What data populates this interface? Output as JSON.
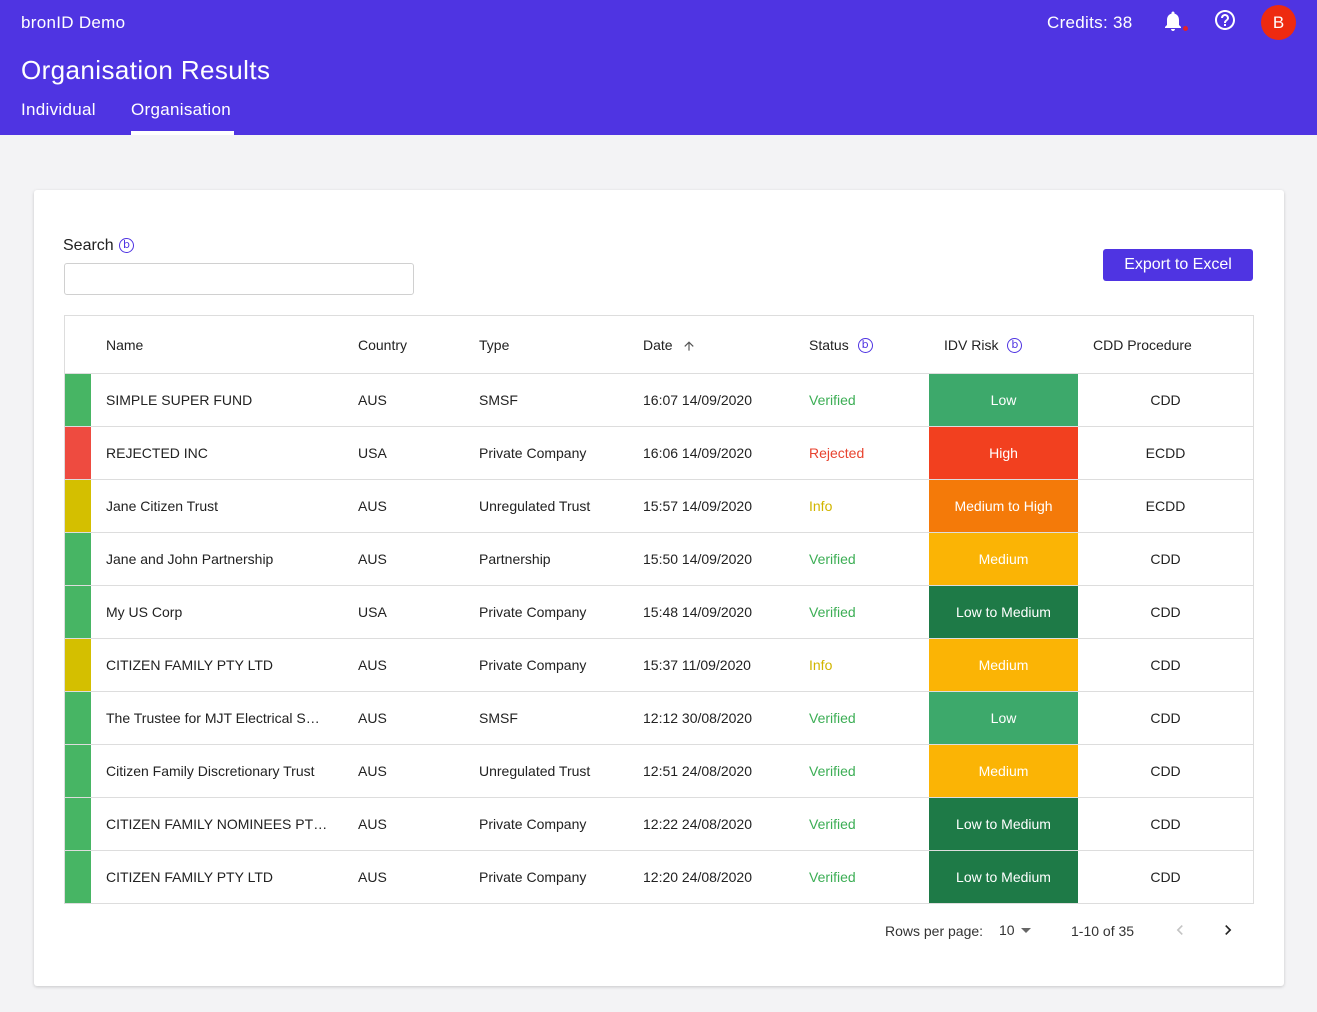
{
  "app": {
    "title": "bronID Demo",
    "page_title": "Organisation Results",
    "credits": "Credits: 38",
    "avatar_initial": "B",
    "brand_color": "#4f34e2"
  },
  "tabs": [
    {
      "label": "Individual",
      "active": false
    },
    {
      "label": "Organisation",
      "active": true
    }
  ],
  "search": {
    "label": "Search",
    "info_glyph": "b",
    "value": "",
    "placeholder": ""
  },
  "export_label": "Export to Excel",
  "table": {
    "headers": {
      "name": "Name",
      "country": "Country",
      "type": "Type",
      "date": "Date",
      "status": "Status",
      "idv_risk": "IDV Risk",
      "cdd": "CDD Procedure"
    },
    "sort": {
      "column": "date",
      "direction": "ascending"
    },
    "rows": [
      {
        "name": "SIMPLE SUPER FUND",
        "country": "AUS",
        "type": "SMSF",
        "date": "16:07 14/09/2020",
        "status": "Verified",
        "risk": "Low",
        "cdd": "CDD"
      },
      {
        "name": "REJECTED INC",
        "country": "USA",
        "type": "Private Company",
        "date": "16:06 14/09/2020",
        "status": "Rejected",
        "risk": "High",
        "cdd": "ECDD"
      },
      {
        "name": "Jane Citizen Trust",
        "country": "AUS",
        "type": "Unregulated Trust",
        "date": "15:57 14/09/2020",
        "status": "Info",
        "risk": "Medium to High",
        "cdd": "ECDD"
      },
      {
        "name": "Jane and John Partnership",
        "country": "AUS",
        "type": "Partnership",
        "date": "15:50 14/09/2020",
        "status": "Verified",
        "risk": "Medium",
        "cdd": "CDD"
      },
      {
        "name": "My US Corp",
        "country": "USA",
        "type": "Private Company",
        "date": "15:48 14/09/2020",
        "status": "Verified",
        "risk": "Low to Medium",
        "cdd": "CDD"
      },
      {
        "name": "CITIZEN FAMILY PTY LTD",
        "country": "AUS",
        "type": "Private Company",
        "date": "15:37 11/09/2020",
        "status": "Info",
        "risk": "Medium",
        "cdd": "CDD"
      },
      {
        "name": "The Trustee for MJT Electrical S…",
        "country": "AUS",
        "type": "SMSF",
        "date": "12:12 30/08/2020",
        "status": "Verified",
        "risk": "Low",
        "cdd": "CDD"
      },
      {
        "name": "Citizen Family Discretionary Trust",
        "country": "AUS",
        "type": "Unregulated Trust",
        "date": "12:51 24/08/2020",
        "status": "Verified",
        "risk": "Medium",
        "cdd": "CDD"
      },
      {
        "name": "CITIZEN FAMILY NOMINEES PTY…",
        "country": "AUS",
        "type": "Private Company",
        "date": "12:22 24/08/2020",
        "status": "Verified",
        "risk": "Low to Medium",
        "cdd": "CDD"
      },
      {
        "name": "CITIZEN FAMILY PTY LTD",
        "country": "AUS",
        "type": "Private Company",
        "date": "12:20 24/08/2020",
        "status": "Verified",
        "risk": "Low to Medium",
        "cdd": "CDD"
      }
    ]
  },
  "status_colors": {
    "Verified": {
      "bar": "#47b564",
      "text": "#3cae55"
    },
    "Rejected": {
      "bar": "#ee4b40",
      "text": "#e8432f"
    },
    "Info": {
      "bar": "#d4bf00",
      "text": "#d1b500"
    }
  },
  "risk_colors": {
    "Low": "#3da96b",
    "High": "#f2401f",
    "Medium to High": "#f47a09",
    "Medium": "#fbb405",
    "Low to Medium": "#1e7a47"
  },
  "pagination": {
    "rows_per_page_label": "Rows per page:",
    "rows_per_page": "10",
    "range": "1-10 of 35"
  },
  "icons": [
    "bell-icon",
    "help-icon",
    "info-icon",
    "arrow-up-icon",
    "chevron-left-icon",
    "chevron-right-icon",
    "caret-down-icon"
  ]
}
